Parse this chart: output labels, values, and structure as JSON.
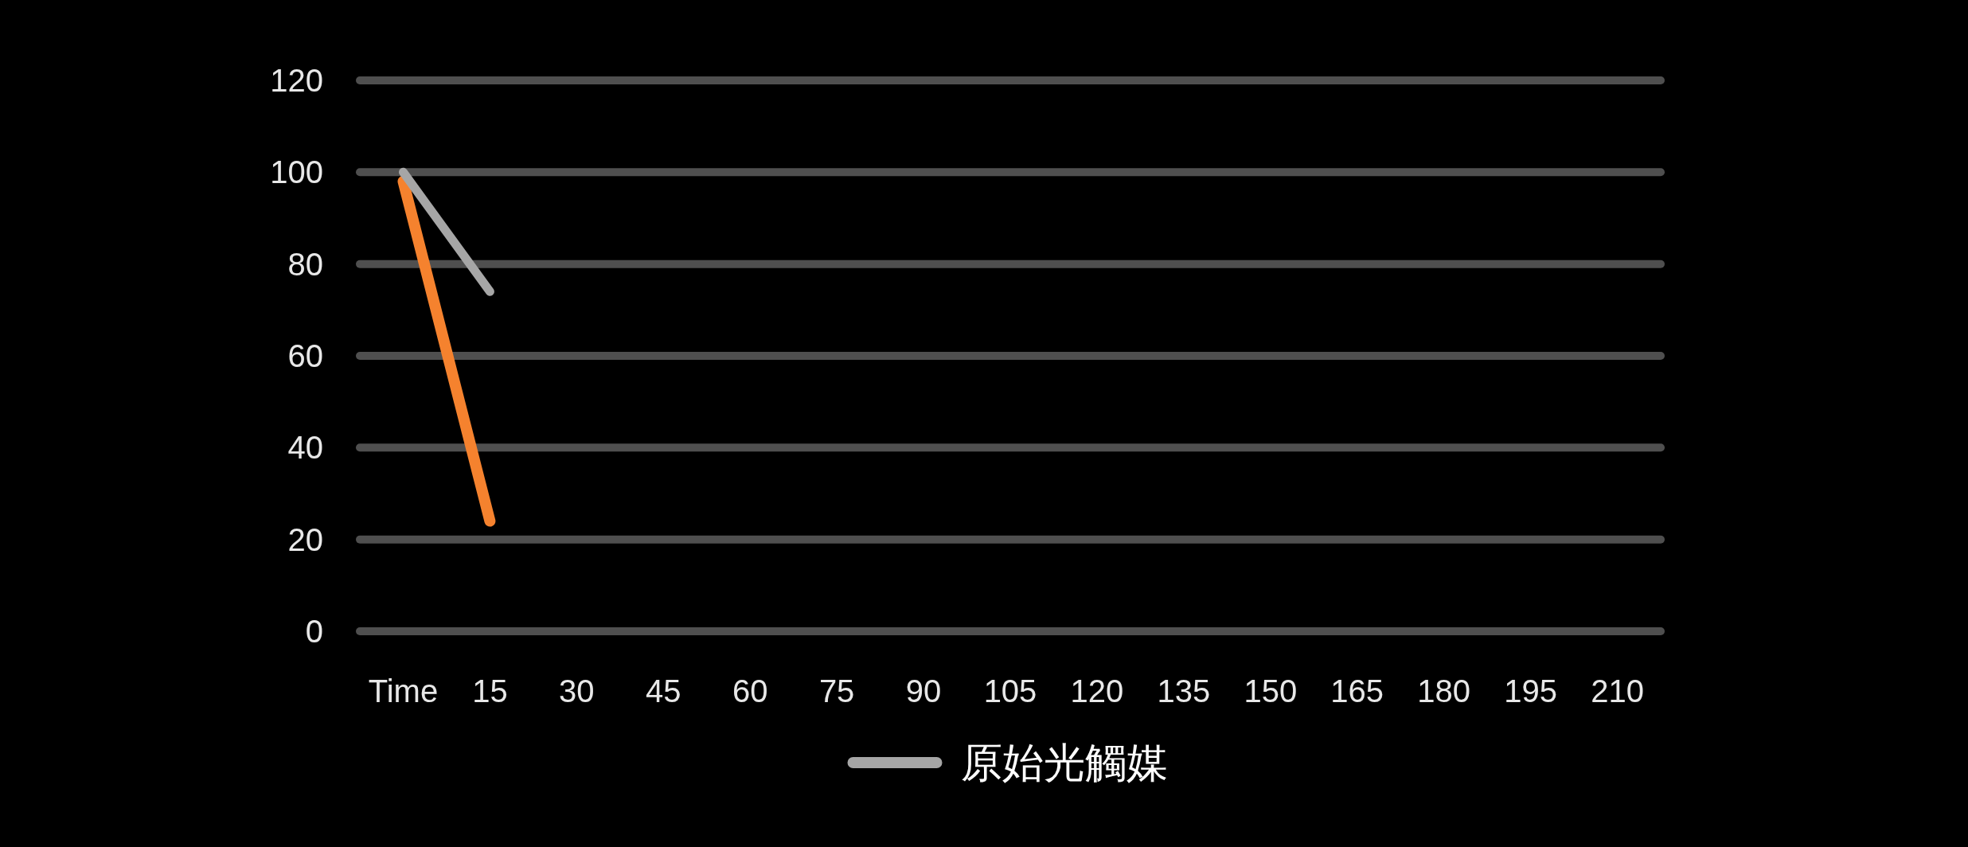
{
  "chart_data": {
    "type": "line",
    "categories": [
      "Time",
      "15",
      "30",
      "45",
      "60",
      "75",
      "90",
      "105",
      "120",
      "135",
      "150",
      "165",
      "180",
      "195",
      "210"
    ],
    "series": [
      {
        "color": "#f5822e",
        "values": [
          98,
          24,
          null,
          null,
          null,
          null,
          null,
          null,
          null,
          null,
          null,
          null,
          null,
          null,
          null
        ]
      },
      {
        "name": "原始光觸媒",
        "color": "#a6a6a6",
        "values": [
          100,
          74,
          null,
          null,
          null,
          null,
          null,
          null,
          null,
          null,
          null,
          null,
          null,
          null,
          null
        ]
      }
    ],
    "ylim": [
      0,
      120
    ],
    "yticks": [
      0,
      20,
      40,
      60,
      80,
      100,
      120
    ],
    "grid": "y",
    "legend": "bottom",
    "line_style": "solid"
  }
}
